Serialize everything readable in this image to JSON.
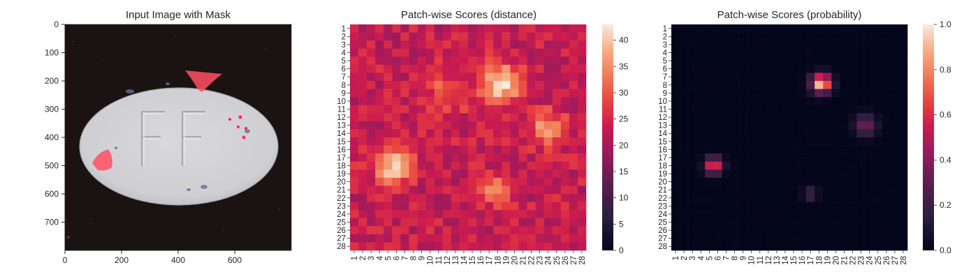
{
  "chart_data": [
    {
      "type": "image",
      "title": "Input Image with Mask",
      "xlabel": "",
      "ylabel": "",
      "xlim": [
        0,
        800
      ],
      "ylim": [
        800,
        0
      ],
      "x_ticks": [
        "0",
        "200",
        "400",
        "600"
      ],
      "y_ticks": [
        "0",
        "100",
        "200",
        "300",
        "400",
        "500",
        "600",
        "700"
      ],
      "grid": false,
      "content": {
        "background": "#1b1212",
        "object": "white oval pill",
        "object_color": "#d4d4d8",
        "embossed_text": "FF",
        "mask_color": "#ff5064",
        "mask_regions": [
          {
            "name": "top-right notch",
            "x": 480,
            "y": 200
          },
          {
            "name": "left edge patch",
            "x": 140,
            "y": 480
          },
          {
            "name": "red dots",
            "x": 630,
            "y": 360
          }
        ]
      }
    },
    {
      "type": "heatmap",
      "title": "Patch-wise Scores (distance)",
      "xlabel": "",
      "ylabel": "",
      "rows": 28,
      "cols": 28,
      "x_ticks": [
        "1",
        "2",
        "3",
        "4",
        "5",
        "6",
        "7",
        "8",
        "9",
        "10",
        "11",
        "12",
        "13",
        "14",
        "15",
        "16",
        "17",
        "18",
        "19",
        "20",
        "21",
        "22",
        "23",
        "24",
        "25",
        "26",
        "27",
        "28"
      ],
      "y_ticks": [
        "1",
        "2",
        "3",
        "4",
        "5",
        "6",
        "7",
        "8",
        "9",
        "10",
        "11",
        "12",
        "13",
        "14",
        "15",
        "16",
        "17",
        "18",
        "19",
        "20",
        "21",
        "22",
        "23",
        "24",
        "25",
        "26",
        "27",
        "28"
      ],
      "colorbar": {
        "min": 0,
        "max": 43,
        "ticks": [
          "0",
          "5",
          "10",
          "15",
          "20",
          "25",
          "30",
          "35",
          "40"
        ]
      },
      "colormap": "rocket",
      "base_value": 23,
      "hotspots": [
        {
          "row": 7.8,
          "col": 18.5,
          "peak": 20,
          "spread": 1.6,
          "label": "top-center hot region"
        },
        {
          "row": 13.3,
          "col": 23.8,
          "peak": 12,
          "spread": 1.5,
          "label": "right hot region"
        },
        {
          "row": 18,
          "col": 5.5,
          "peak": 18,
          "spread": 1.5,
          "label": "left hot region"
        },
        {
          "row": 21,
          "col": 17.5,
          "peak": 10,
          "spread": 1.3,
          "label": "lower-center hot region"
        },
        {
          "row": 9,
          "col": 12,
          "peak": 7,
          "spread": 2.0,
          "label": "upper band"
        }
      ]
    },
    {
      "type": "heatmap",
      "title": "Patch-wise Scores (probability)",
      "xlabel": "",
      "ylabel": "",
      "rows": 28,
      "cols": 28,
      "x_ticks": [
        "1",
        "2",
        "3",
        "4",
        "5",
        "6",
        "7",
        "8",
        "9",
        "10",
        "11",
        "12",
        "13",
        "14",
        "15",
        "16",
        "17",
        "18",
        "19",
        "20",
        "21",
        "22",
        "23",
        "24",
        "25",
        "26",
        "27",
        "28"
      ],
      "y_ticks": [
        "1",
        "2",
        "3",
        "4",
        "5",
        "6",
        "7",
        "8",
        "9",
        "10",
        "11",
        "12",
        "13",
        "14",
        "15",
        "16",
        "17",
        "18",
        "19",
        "20",
        "21",
        "22",
        "23",
        "24",
        "25",
        "26",
        "27",
        "28"
      ],
      "colorbar": {
        "min": 0,
        "max": 1,
        "ticks": [
          "0.0",
          "0.2",
          "0.4",
          "0.6",
          "0.8",
          "1.0"
        ]
      },
      "colormap": "rocket",
      "base_value": 0.0,
      "hotspots": [
        {
          "row": 7.8,
          "col": 18.3,
          "peak": 1.0,
          "spread": 0.8,
          "label": "top-center region"
        },
        {
          "row": 13,
          "col": 23.5,
          "peak": 0.35,
          "spread": 0.9,
          "label": "right region"
        },
        {
          "row": 18,
          "col": 5.5,
          "peak": 0.72,
          "spread": 0.7,
          "label": "left region"
        },
        {
          "row": 21.5,
          "col": 17,
          "peak": 0.22,
          "spread": 0.6,
          "label": "lower-center region"
        }
      ]
    }
  ]
}
